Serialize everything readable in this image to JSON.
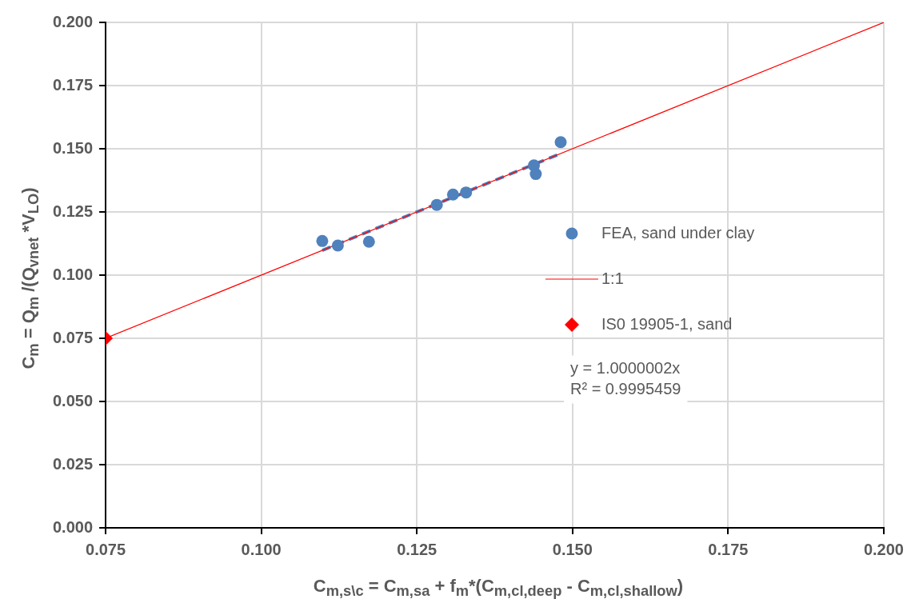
{
  "chart_data": {
    "type": "scatter",
    "xlabel": "C$_{m,s\\c}$ = C$_{m,sa}$ + f$_{m}$*(C$_{m,cl,deep}$ - C$_{m,cl,shallow}$)",
    "ylabel": "C$_{m}$ = Q$_{m}$ /(Q$_{vnet}$ *V$_{LO}$)",
    "xlim": [
      0.075,
      0.2
    ],
    "ylim": [
      0,
      0.2
    ],
    "xticks": [
      {
        "value": 0.075,
        "label": "0.075"
      },
      {
        "value": 0.1,
        "label": "0.100"
      },
      {
        "value": 0.125,
        "label": "0.125"
      },
      {
        "value": 0.15,
        "label": "0.150"
      },
      {
        "value": 0.175,
        "label": "0.175"
      },
      {
        "value": 0.2,
        "label": "0.200"
      }
    ],
    "yticks": [
      {
        "value": 0,
        "label": "0.000"
      },
      {
        "value": 0.025,
        "label": "0.025"
      },
      {
        "value": 0.05,
        "label": "0.050"
      },
      {
        "value": 0.075,
        "label": "0.075"
      },
      {
        "value": 0.1,
        "label": "0.100"
      },
      {
        "value": 0.125,
        "label": "0.125"
      },
      {
        "value": 0.15,
        "label": "0.150"
      },
      {
        "value": 0.175,
        "label": "0.175"
      },
      {
        "value": 0.2,
        "label": "0.200"
      }
    ],
    "grid": true,
    "legend": "right",
    "annotations": [
      "y = 1.0000002x",
      "R² = 0.9995459"
    ],
    "series": [
      {
        "name": "FEA, sand under clay",
        "type": "scatter",
        "color": "#4f81bd",
        "marker": "circle",
        "x": [
          0.1098,
          0.1123,
          0.1173,
          0.1282,
          0.1308,
          0.1329,
          0.1438,
          0.1441,
          0.1481
        ],
        "values": [
          0.1135,
          0.1117,
          0.1132,
          0.1278,
          0.1319,
          0.1327,
          0.1434,
          0.14,
          0.1526
        ]
      },
      {
        "name": "1:1",
        "type": "line",
        "color": "#ff0000",
        "marker": "none",
        "x": [
          0.075,
          0.2
        ],
        "values": [
          0.075,
          0.2
        ]
      },
      {
        "name": "IS0 19905-1, sand",
        "type": "scatter",
        "color": "#ff0000",
        "marker": "diamond",
        "x": [
          0.075
        ],
        "values": [
          0.075
        ]
      },
      {
        "type": "line",
        "color": "#4f81bd",
        "marker": "none",
        "line_style": "dashed",
        "x": [
          0.1098,
          0.1481
        ],
        "values": [
          0.1098,
          0.1481
        ]
      }
    ]
  }
}
